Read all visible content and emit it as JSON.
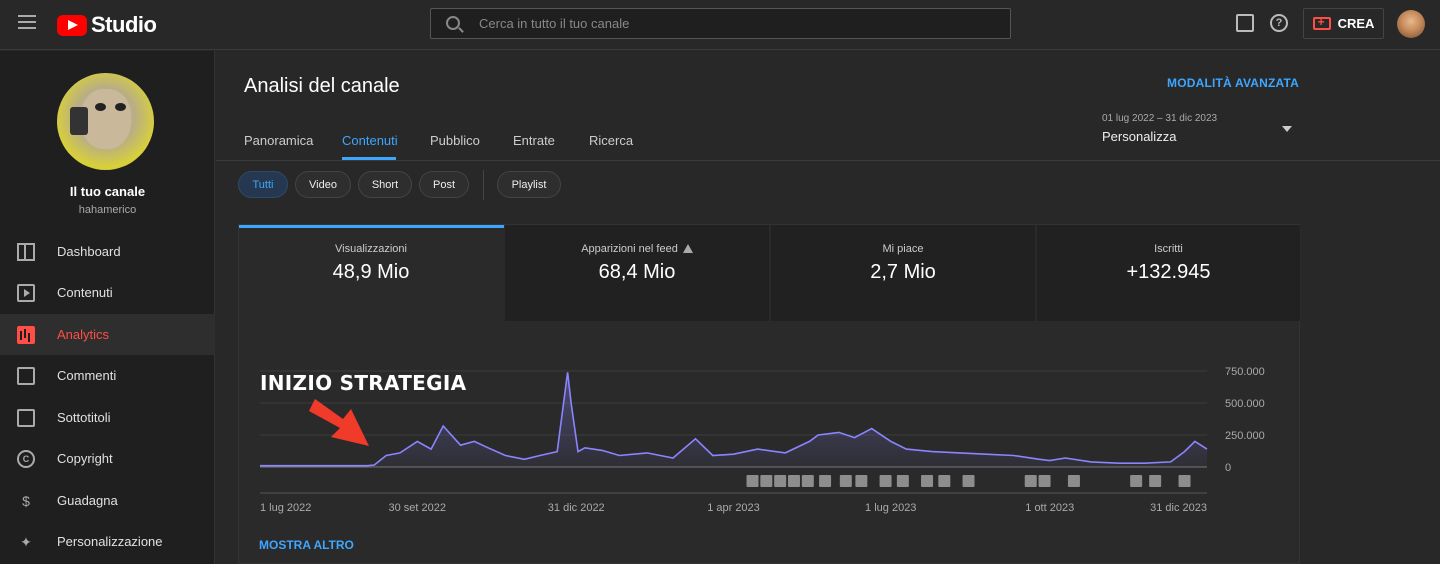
{
  "header": {
    "brand": "Studio",
    "search_placeholder": "Cerca in tutto il tuo canale",
    "create_label": "CREA",
    "icons": [
      "menu-icon",
      "youtube-logo-icon",
      "search-icon",
      "feedback-icon",
      "help-icon",
      "create-video-icon",
      "account-avatar"
    ]
  },
  "sidebar": {
    "channel_name": "Il tuo canale",
    "channel_handle": "hahamerico",
    "items": [
      {
        "label": "Dashboard",
        "icon": "dashboard-icon"
      },
      {
        "label": "Contenuti",
        "icon": "content-icon"
      },
      {
        "label": "Analytics",
        "icon": "analytics-icon",
        "active": true
      },
      {
        "label": "Commenti",
        "icon": "comments-icon"
      },
      {
        "label": "Sottotitoli",
        "icon": "subtitles-icon"
      },
      {
        "label": "Copyright",
        "icon": "copyright-icon"
      },
      {
        "label": "Guadagna",
        "icon": "earn-icon"
      },
      {
        "label": "Personalizzazione",
        "icon": "customization-icon"
      }
    ]
  },
  "main": {
    "title": "Analisi del canale",
    "advanced_mode": "MODALITÀ AVANZATA",
    "tabs": [
      "Panoramica",
      "Contenuti",
      "Pubblico",
      "Entrate",
      "Ricerca"
    ],
    "active_tab": "Contenuti",
    "date_range": "01 lug 2022 – 31 dic 2023",
    "date_select": "Personalizza",
    "chips": [
      "Tutti",
      "Video",
      "Short",
      "Post",
      "Playlist"
    ],
    "active_chip": "Tutti",
    "metrics": [
      {
        "label": "Visualizzazioni",
        "value": "48,9 Mio"
      },
      {
        "label": "Apparizioni nel feed",
        "value": "68,4 Mio",
        "warning": true
      },
      {
        "label": "Mi piace",
        "value": "2,7 Mio"
      },
      {
        "label": "Iscritti",
        "value": "+132.945"
      }
    ],
    "annotation": "INIZIO STRATEGIA",
    "show_more": "MOSTRA ALTRO"
  },
  "colors": {
    "accent": "#3ea6ff",
    "brand_red": "#ff0000",
    "active_nav": "#ff4e45",
    "series": "#8a85ff",
    "arrow": "#f03a2a"
  },
  "chart_data": {
    "type": "line",
    "title": "",
    "xlabel": "",
    "ylabel": "",
    "xlim": [
      "2022-07-01",
      "2023-12-31"
    ],
    "ylim": [
      0,
      750000
    ],
    "y_ticks": [
      0,
      250000,
      500000,
      750000
    ],
    "y_tick_labels": [
      "0",
      "250.000",
      "500.000",
      "750.000"
    ],
    "x_tick_labels": [
      "1 lug 2022",
      "30 set 2022",
      "31 dic 2022",
      "1 apr 2023",
      "1 lug 2023",
      "1 ott 2023",
      "31 dic 2023"
    ],
    "x_tick_dates": [
      "2022-07-01",
      "2022-09-30",
      "2022-12-31",
      "2023-04-01",
      "2023-07-01",
      "2023-10-01",
      "2023-12-31"
    ],
    "grid": true,
    "series": [
      {
        "x": [
          "2022-07-01",
          "2022-08-01",
          "2022-09-01",
          "2022-09-05",
          "2022-09-12",
          "2022-09-20",
          "2022-09-30",
          "2022-10-08",
          "2022-10-15",
          "2022-10-25",
          "2022-11-02",
          "2022-11-10",
          "2022-11-20",
          "2022-12-01",
          "2022-12-10",
          "2022-12-20",
          "2022-12-26",
          "2022-12-28",
          "2023-01-01",
          "2023-01-05",
          "2023-01-15",
          "2023-01-25",
          "2023-02-10",
          "2023-02-25",
          "2023-03-10",
          "2023-03-20",
          "2023-04-01",
          "2023-04-15",
          "2023-05-01",
          "2023-05-15",
          "2023-05-20",
          "2023-06-01",
          "2023-06-10",
          "2023-06-20",
          "2023-07-01",
          "2023-07-10",
          "2023-07-25",
          "2023-08-10",
          "2023-08-25",
          "2023-09-10",
          "2023-09-25",
          "2023-10-01",
          "2023-10-10",
          "2023-10-25",
          "2023-11-10",
          "2023-11-25",
          "2023-12-10",
          "2023-12-18",
          "2023-12-24",
          "2023-12-31"
        ],
        "values": [
          10000,
          10000,
          10000,
          15000,
          90000,
          110000,
          200000,
          140000,
          320000,
          170000,
          200000,
          150000,
          90000,
          60000,
          90000,
          120000,
          740000,
          500000,
          120000,
          150000,
          130000,
          90000,
          110000,
          70000,
          220000,
          90000,
          100000,
          140000,
          110000,
          200000,
          250000,
          270000,
          230000,
          300000,
          200000,
          140000,
          120000,
          110000,
          100000,
          90000,
          60000,
          50000,
          70000,
          40000,
          30000,
          30000,
          40000,
          120000,
          200000,
          140000
        ]
      }
    ]
  }
}
